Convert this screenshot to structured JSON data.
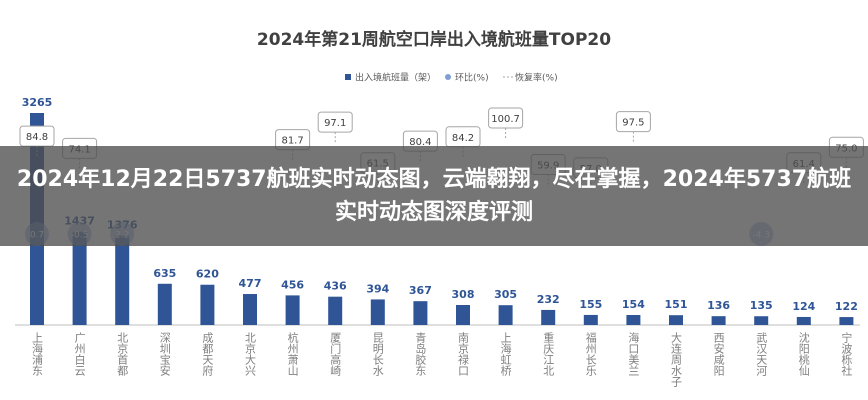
{
  "banner": "2024年12月22日5737航班实时动态图，云端翱翔，尽在掌握，2024年5737航班实时动态图深度评测",
  "chart_data": {
    "type": "bar",
    "title": "2024年第21周航空口岸出入境航班量TOP20",
    "categories": [
      "上海浦东",
      "广州白云",
      "北京首都",
      "深圳宝安",
      "成都天府",
      "北京大兴",
      "杭州萧山",
      "厦门高崎",
      "昆明长水",
      "青岛胶东",
      "南京禄口",
      "上海虹桥",
      "重庆江北",
      "福州长乐",
      "海口美兰",
      "大连周水子",
      "西安咸阳",
      "武汉天河",
      "沈阳桃仙",
      "宁波栎社"
    ],
    "series": [
      {
        "name": "出入境航班量（架）",
        "color": "#2f5597",
        "values": [
          3265,
          1437,
          1376,
          635,
          620,
          477,
          456,
          436,
          394,
          367,
          308,
          305,
          232,
          155,
          154,
          151,
          136,
          135,
          124,
          122
        ]
      },
      {
        "name": "环比(%)",
        "color": "#7f9fd4",
        "values": [
          0.7,
          -0.5,
          2.2,
          null,
          null,
          null,
          null,
          null,
          null,
          null,
          null,
          null,
          null,
          null,
          null,
          null,
          null,
          -4.3,
          null,
          null
        ]
      },
      {
        "name": "恢复率(%)",
        "color": "#a6a6a6",
        "values": [
          84.8,
          74.1,
          null,
          null,
          null,
          null,
          81.7,
          97.1,
          61.5,
          80.4,
          84.2,
          100.7,
          59.9,
          57,
          97.5,
          null,
          null,
          null,
          61.4,
          75
        ],
        "value_labels": [
          "84.8",
          "74.1",
          null,
          null,
          null,
          null,
          "81.7",
          "97.1",
          "61.5",
          "80.4",
          "84.2",
          "100.7",
          "59.9",
          "57.0",
          "97.5",
          null,
          null,
          null,
          "61.4",
          "75.0"
        ]
      }
    ]
  }
}
